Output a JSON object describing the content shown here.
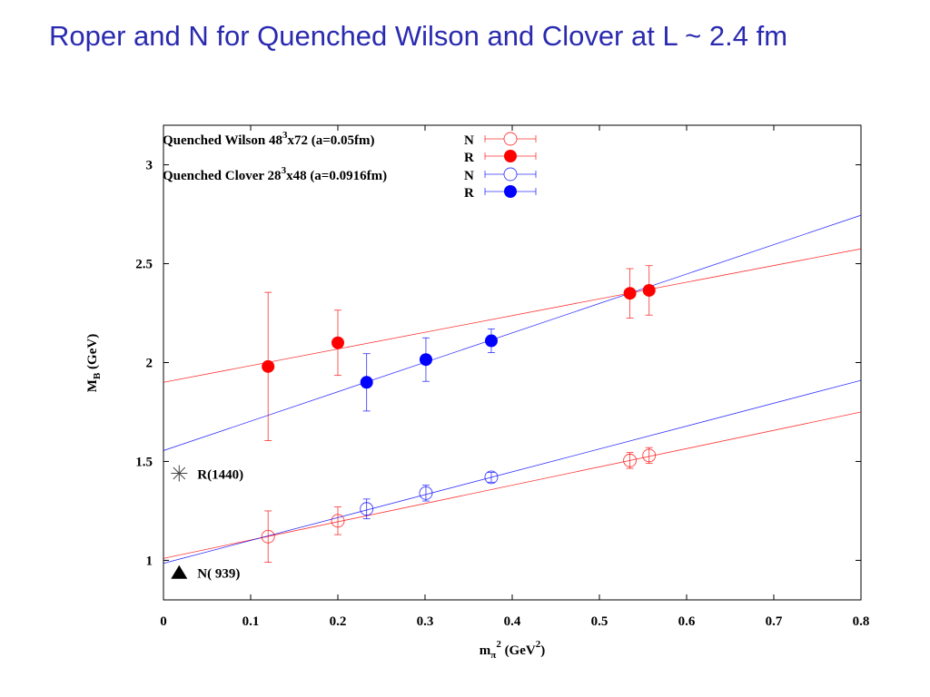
{
  "slide": {
    "title": "Roper and N for Quenched Wilson and Clover at L ~ 2.4 fm"
  },
  "colors": {
    "wilson": "#ff0000",
    "clover": "#0000ff",
    "title": "#2a2ab0"
  },
  "chart_data": {
    "type": "scatter",
    "xlabel": {
      "base": "m",
      "sub": "π",
      "sup": "2",
      "unit_pre": " (GeV",
      "unit_sup": "2",
      "unit_post": ")"
    },
    "ylabel": {
      "base": "M",
      "sub": "B",
      "rest": " (GeV)"
    },
    "xlim": [
      0,
      0.8
    ],
    "ylim": [
      0.8,
      3.2
    ],
    "x_ticks": [
      {
        "v": 0,
        "label": "0"
      },
      {
        "v": 0.1,
        "label": "0.1"
      },
      {
        "v": 0.2,
        "label": "0.2"
      },
      {
        "v": 0.3,
        "label": "0.3"
      },
      {
        "v": 0.4,
        "label": "0.4"
      },
      {
        "v": 0.5,
        "label": "0.5"
      },
      {
        "v": 0.6,
        "label": "0.6"
      },
      {
        "v": 0.7,
        "label": "0.7"
      },
      {
        "v": 0.8,
        "label": "0.8"
      }
    ],
    "y_ticks": [
      {
        "v": 1,
        "label": "1"
      },
      {
        "v": 1.5,
        "label": "1.5"
      },
      {
        "v": 2,
        "label": "2"
      },
      {
        "v": 2.5,
        "label": "2.5"
      },
      {
        "v": 3,
        "label": "3"
      }
    ],
    "grid": false,
    "legend_position": "top",
    "legend_groups": [
      {
        "pre": "Quenched Wilson 48",
        "sup": "3",
        "post": "x72 (a=0.05fm)",
        "entries": [
          "N",
          "R"
        ]
      },
      {
        "pre": "Quenched Clover 28",
        "sup": "3",
        "post": "x48 (a=0.0916fm)",
        "entries": [
          "N",
          "R"
        ]
      }
    ],
    "series": [
      {
        "group": "Wilson",
        "legend": "N",
        "color": "#ff0000",
        "filled": false,
        "points": [
          {
            "x": 0.12,
            "y": 1.12,
            "err": 0.13
          },
          {
            "x": 0.2,
            "y": 1.2,
            "err": 0.07
          },
          {
            "x": 0.535,
            "y": 1.505,
            "err": 0.04
          },
          {
            "x": 0.557,
            "y": 1.53,
            "err": 0.04
          }
        ],
        "fit": [
          [
            0,
            1.01
          ],
          [
            0.8,
            1.75
          ]
        ]
      },
      {
        "group": "Wilson",
        "legend": "R",
        "color": "#ff0000",
        "filled": true,
        "points": [
          {
            "x": 0.12,
            "y": 1.98,
            "err": 0.375
          },
          {
            "x": 0.2,
            "y": 2.1,
            "err": 0.165
          },
          {
            "x": 0.535,
            "y": 2.35,
            "err": 0.125
          },
          {
            "x": 0.557,
            "y": 2.365,
            "err": 0.125
          }
        ],
        "fit": [
          [
            0,
            1.9
          ],
          [
            0.8,
            2.575
          ]
        ]
      },
      {
        "group": "Clover",
        "legend": "N",
        "color": "#0000ff",
        "filled": false,
        "points": [
          {
            "x": 0.233,
            "y": 1.26,
            "err": 0.05
          },
          {
            "x": 0.301,
            "y": 1.34,
            "err": 0.04
          },
          {
            "x": 0.376,
            "y": 1.42,
            "err": 0.025
          }
        ],
        "fit": [
          [
            0,
            0.985
          ],
          [
            0.8,
            1.91
          ]
        ]
      },
      {
        "group": "Clover",
        "legend": "R",
        "color": "#0000ff",
        "filled": true,
        "points": [
          {
            "x": 0.233,
            "y": 1.9,
            "err": 0.145
          },
          {
            "x": 0.301,
            "y": 2.015,
            "err": 0.11
          },
          {
            "x": 0.376,
            "y": 2.11,
            "err": 0.06
          }
        ],
        "fit": [
          [
            0,
            1.555
          ],
          [
            0.8,
            2.745
          ]
        ]
      }
    ],
    "annotations": [
      {
        "label": "R(1440)",
        "marker": "asterisk",
        "x": 0.018,
        "y": 1.44
      },
      {
        "label": "N( 939)",
        "marker": "triangle",
        "x": 0.018,
        "y": 0.939
      }
    ]
  }
}
